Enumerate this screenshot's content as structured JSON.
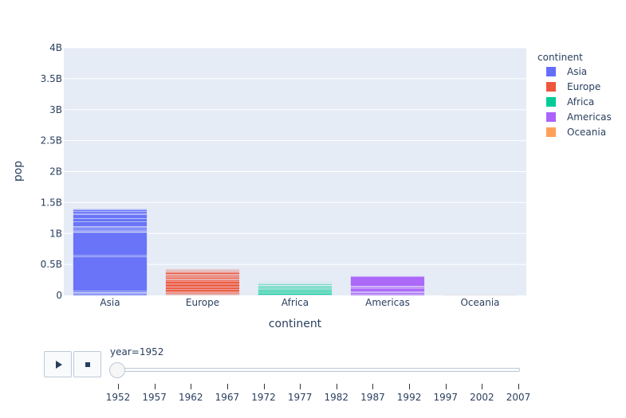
{
  "chart_data": {
    "type": "bar",
    "barmode": "stack",
    "title": "",
    "xlabel": "continent",
    "ylabel": "pop",
    "ylim": [
      0,
      4000000000
    ],
    "y_tick_labels": [
      "0",
      "0.5B",
      "1B",
      "1.5B",
      "2B",
      "2.5B",
      "3B",
      "3.5B",
      "4B"
    ],
    "y_tick_values": [
      0,
      500000000,
      1000000000,
      1500000000,
      2000000000,
      2500000000,
      3000000000,
      3500000000,
      4000000000
    ],
    "categories": [
      "Asia",
      "Europe",
      "Africa",
      "Americas",
      "Oceania"
    ],
    "grid": true,
    "legend_position": "top-right",
    "legend_title": "continent",
    "series": [
      {
        "name": "Asia",
        "color": "#636efa",
        "category": "Asia",
        "segments": [
          25000000,
          15000000,
          8000000,
          22000000,
          556000000,
          20000000,
          372000000,
          10000000,
          16000000,
          26000000,
          30000000,
          12000000,
          80000000,
          50000000,
          63000000,
          19000000,
          32000000,
          25000000,
          14000000
        ]
      },
      {
        "name": "Europe",
        "color": "#ef553b",
        "category": "Europe",
        "segments": [
          9000000,
          8000000,
          22000000,
          14000000,
          40000000,
          42000000,
          47000000,
          49000000,
          25000000,
          10000000,
          28000000,
          16000000,
          21000000,
          12000000,
          31000000,
          8000000,
          14000000,
          4000000,
          10000000,
          7000000,
          9000000
        ]
      },
      {
        "name": "Africa",
        "color": "#00cc96",
        "category": "Africa",
        "segments": [
          9000000,
          21000000,
          20000000,
          15000000,
          22000000,
          12000000,
          9000000,
          14000000,
          17000000,
          7000000,
          11000000,
          7000000,
          13000000,
          6000000,
          9000000,
          5000000,
          8000000,
          4000000,
          7000000,
          4000000
        ]
      },
      {
        "name": "Americas",
        "color": "#ab63fa",
        "category": "Americas",
        "segments": [
          17000000,
          28000000,
          14000000,
          56000000,
          20000000,
          15000000,
          157000000,
          6000000,
          4000000,
          5000000,
          3000000,
          4000000,
          3000000
        ]
      },
      {
        "name": "Oceania",
        "color": "#ffa15a",
        "category": "Oceania",
        "segments": [
          8700000,
          1900000
        ]
      }
    ]
  },
  "slider": {
    "current_label": "year=1952",
    "steps": [
      "1952",
      "1957",
      "1962",
      "1967",
      "1972",
      "1977",
      "1982",
      "1987",
      "1992",
      "1997",
      "2002",
      "2007"
    ],
    "current_value": "1952"
  },
  "controls": {
    "play_icon": "play-icon",
    "stop_icon": "stop-icon"
  }
}
